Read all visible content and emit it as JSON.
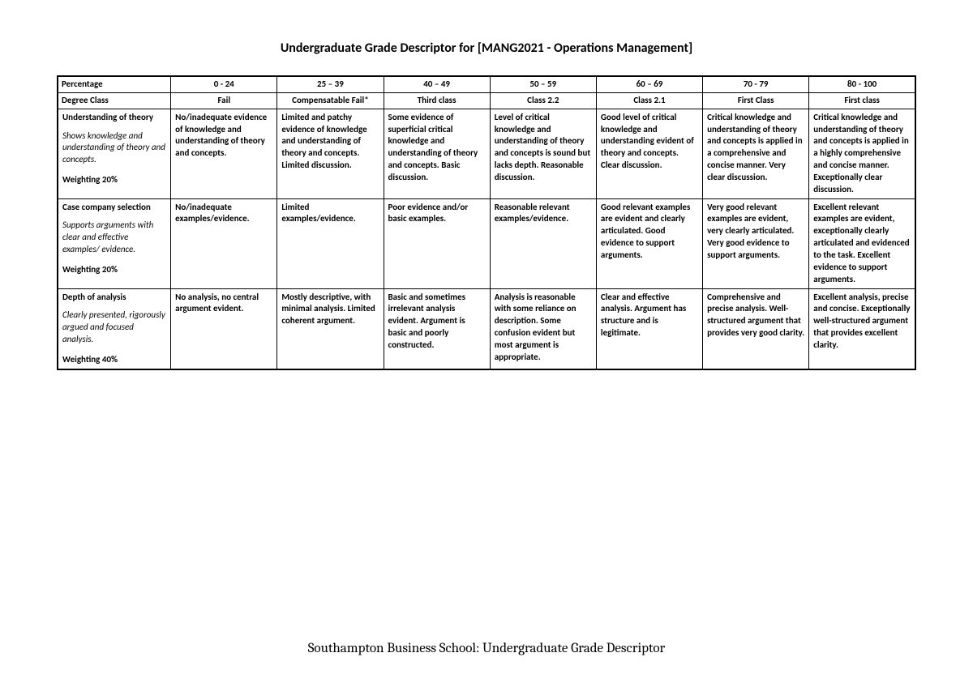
{
  "title": "Undergraduate Grade Descriptor for [MANG2021 - Operations Management]",
  "footer": "Southampton Business School: Undergraduate Grade Descriptor",
  "headers": {
    "row1_label": "Percentage",
    "row2_label": "Degree Class",
    "cols": [
      {
        "range": "0 - 24",
        "class": "Fail"
      },
      {
        "range": "25 – 39",
        "class": "Compensatable Fail*"
      },
      {
        "range": "40 – 49",
        "class": "Third class"
      },
      {
        "range": "50 – 59",
        "class": "Class 2.2"
      },
      {
        "range": "60 – 69",
        "class": "Class 2.1"
      },
      {
        "range": "70 - 79",
        "class": "First Class"
      },
      {
        "range": "80 - 100",
        "class": "First class"
      }
    ]
  },
  "criteria": [
    {
      "name": "Understanding of theory",
      "desc": "Shows knowledge and understanding of theory and concepts.",
      "weight": "Weighting 20%",
      "cells": [
        "No/inadequate evidence of knowledge and understanding of theory and concepts.",
        "Limited and patchy evidence of knowledge and understanding of theory and concepts. Limited discussion.",
        "Some evidence of superficial critical knowledge and understanding of theory and concepts. Basic discussion.",
        "Level of critical knowledge and understanding of theory and concepts is sound but lacks depth. Reasonable discussion.",
        "Good level of critical knowledge and understanding evident of theory and concepts.  Clear discussion.",
        "Critical knowledge and understanding of theory and concepts is applied in a comprehensive and concise manner. Very clear discussion.",
        "Critical knowledge and understanding of theory and concepts is applied in a highly comprehensive and concise manner. Exceptionally clear discussion."
      ]
    },
    {
      "name": "Case company selection",
      "desc": "Supports arguments with clear and effective examples/ evidence.",
      "weight": "Weighting 20%",
      "cells": [
        "No/inadequate examples/evidence.",
        "Limited examples/evidence.",
        "Poor evidence and/or basic examples.",
        "Reasonable relevant examples/evidence.",
        "Good relevant examples are evident and clearly articulated.  Good evidence to support arguments.",
        "Very good relevant examples are evident, very clearly articulated. Very good evidence to support arguments.",
        "Excellent relevant examples are evident, exceptionally clearly articulated and evidenced to the task.  Excellent evidence to support arguments."
      ]
    },
    {
      "name": "Depth of analysis",
      "desc": "Clearly presented, rigorously argued and focused analysis.",
      "weight": "Weighting 40%",
      "cells": [
        "No analysis, no central argument evident.",
        "Mostly descriptive, with minimal analysis. Limited coherent argument.",
        "Basic and sometimes irrelevant analysis evident. Argument is basic and poorly constructed.",
        "Analysis is reasonable with some reliance on description. Some confusion evident but most argument is appropriate.",
        "Clear and effective analysis. Argument has structure and is legitimate.",
        "Comprehensive and precise analysis. Well-structured argument that provides very good clarity.",
        "Excellent analysis, precise and concise. Exceptionally well-structured argument that provides excellent clarity."
      ]
    }
  ]
}
